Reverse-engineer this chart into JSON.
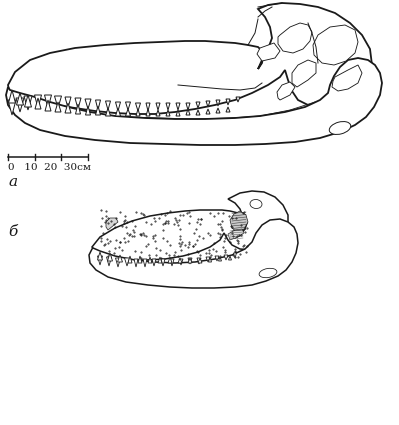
{
  "background_color": "#ffffff",
  "label_a": "а",
  "label_b": "б",
  "scale_label": "0   10  20  30см",
  "line_color": "#1a1a1a",
  "lw_main": 1.3,
  "lw_thin": 0.7,
  "lw_teeth": 0.8
}
